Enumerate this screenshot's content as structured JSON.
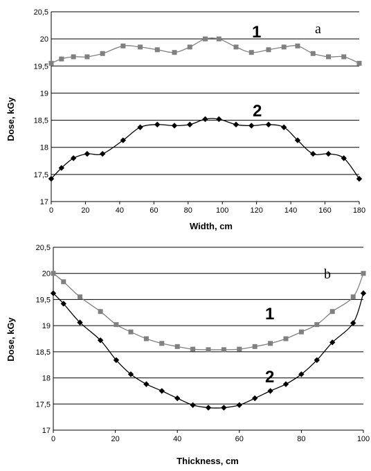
{
  "chart_data": [
    {
      "type": "line",
      "panel_label": "a",
      "xlabel": "Width, cm",
      "ylabel": "Dose, kGy",
      "xlim": [
        0,
        180
      ],
      "ylim": [
        17,
        20.5
      ],
      "x_ticks": [
        "0",
        "20",
        "40",
        "60",
        "80",
        "100",
        "120",
        "140",
        "160",
        "180"
      ],
      "y_ticks": [
        "17",
        "17,5",
        "18",
        "18,5",
        "19",
        "19,5",
        "20",
        "20,5"
      ],
      "grid": "horizontal",
      "series": [
        {
          "name": "1",
          "color": "#808080",
          "marker": "square",
          "x": [
            0,
            6,
            13,
            21,
            30,
            42,
            52,
            62,
            72,
            81,
            90,
            98,
            108,
            117,
            127,
            136,
            144,
            153,
            162,
            171,
            180
          ],
          "y": [
            19.55,
            19.63,
            19.67,
            19.67,
            19.73,
            19.87,
            19.85,
            19.8,
            19.75,
            19.85,
            20.0,
            20.0,
            19.85,
            19.75,
            19.8,
            19.85,
            19.87,
            19.73,
            19.67,
            19.67,
            19.55
          ]
        },
        {
          "name": "2",
          "color": "#000000",
          "marker": "diamond",
          "x": [
            0,
            6,
            13,
            21,
            30,
            42,
            52,
            62,
            72,
            81,
            90,
            98,
            108,
            117,
            127,
            136,
            144,
            153,
            162,
            171,
            180
          ],
          "y": [
            17.42,
            17.62,
            17.8,
            17.88,
            17.88,
            18.13,
            18.37,
            18.42,
            18.4,
            18.42,
            18.52,
            18.52,
            18.42,
            18.4,
            18.42,
            18.37,
            18.13,
            17.88,
            17.88,
            17.8,
            17.42
          ]
        }
      ]
    },
    {
      "type": "line",
      "panel_label": "b",
      "xlabel": "Thickness, cm",
      "ylabel": "Dose, kGy",
      "xlim": [
        0,
        100
      ],
      "ylim": [
        17,
        20.5
      ],
      "x_ticks": [
        "0",
        "20",
        "40",
        "60",
        "80",
        "100"
      ],
      "y_ticks": [
        "17",
        "17,5",
        "18",
        "18,5",
        "19",
        "19,5",
        "20",
        "20,5"
      ],
      "grid": "horizontal",
      "series": [
        {
          "name": "1",
          "color": "#808080",
          "marker": "square",
          "x": [
            0,
            3.3,
            8.6,
            15.2,
            20.3,
            25,
            30,
            35,
            40,
            45,
            50,
            55,
            60,
            65,
            70,
            75,
            80,
            85,
            90,
            96.7,
            100
          ],
          "y": [
            20.0,
            19.84,
            19.55,
            19.27,
            19.02,
            18.88,
            18.75,
            18.66,
            18.6,
            18.55,
            18.54,
            18.54,
            18.55,
            18.6,
            18.66,
            18.75,
            18.88,
            19.02,
            19.27,
            19.55,
            20.0
          ]
        },
        {
          "name": "2",
          "color": "#000000",
          "marker": "diamond",
          "x": [
            0,
            3.3,
            8.6,
            15.2,
            20.3,
            25,
            30,
            35,
            40,
            45,
            50,
            55,
            60,
            65,
            70,
            75,
            80,
            85,
            90,
            96.7,
            100
          ],
          "y": [
            19.62,
            19.42,
            19.06,
            18.72,
            18.34,
            18.07,
            17.88,
            17.75,
            17.61,
            17.48,
            17.43,
            17.43,
            17.48,
            17.61,
            17.75,
            17.88,
            18.07,
            18.34,
            18.68,
            19.05,
            19.62
          ]
        }
      ]
    }
  ]
}
